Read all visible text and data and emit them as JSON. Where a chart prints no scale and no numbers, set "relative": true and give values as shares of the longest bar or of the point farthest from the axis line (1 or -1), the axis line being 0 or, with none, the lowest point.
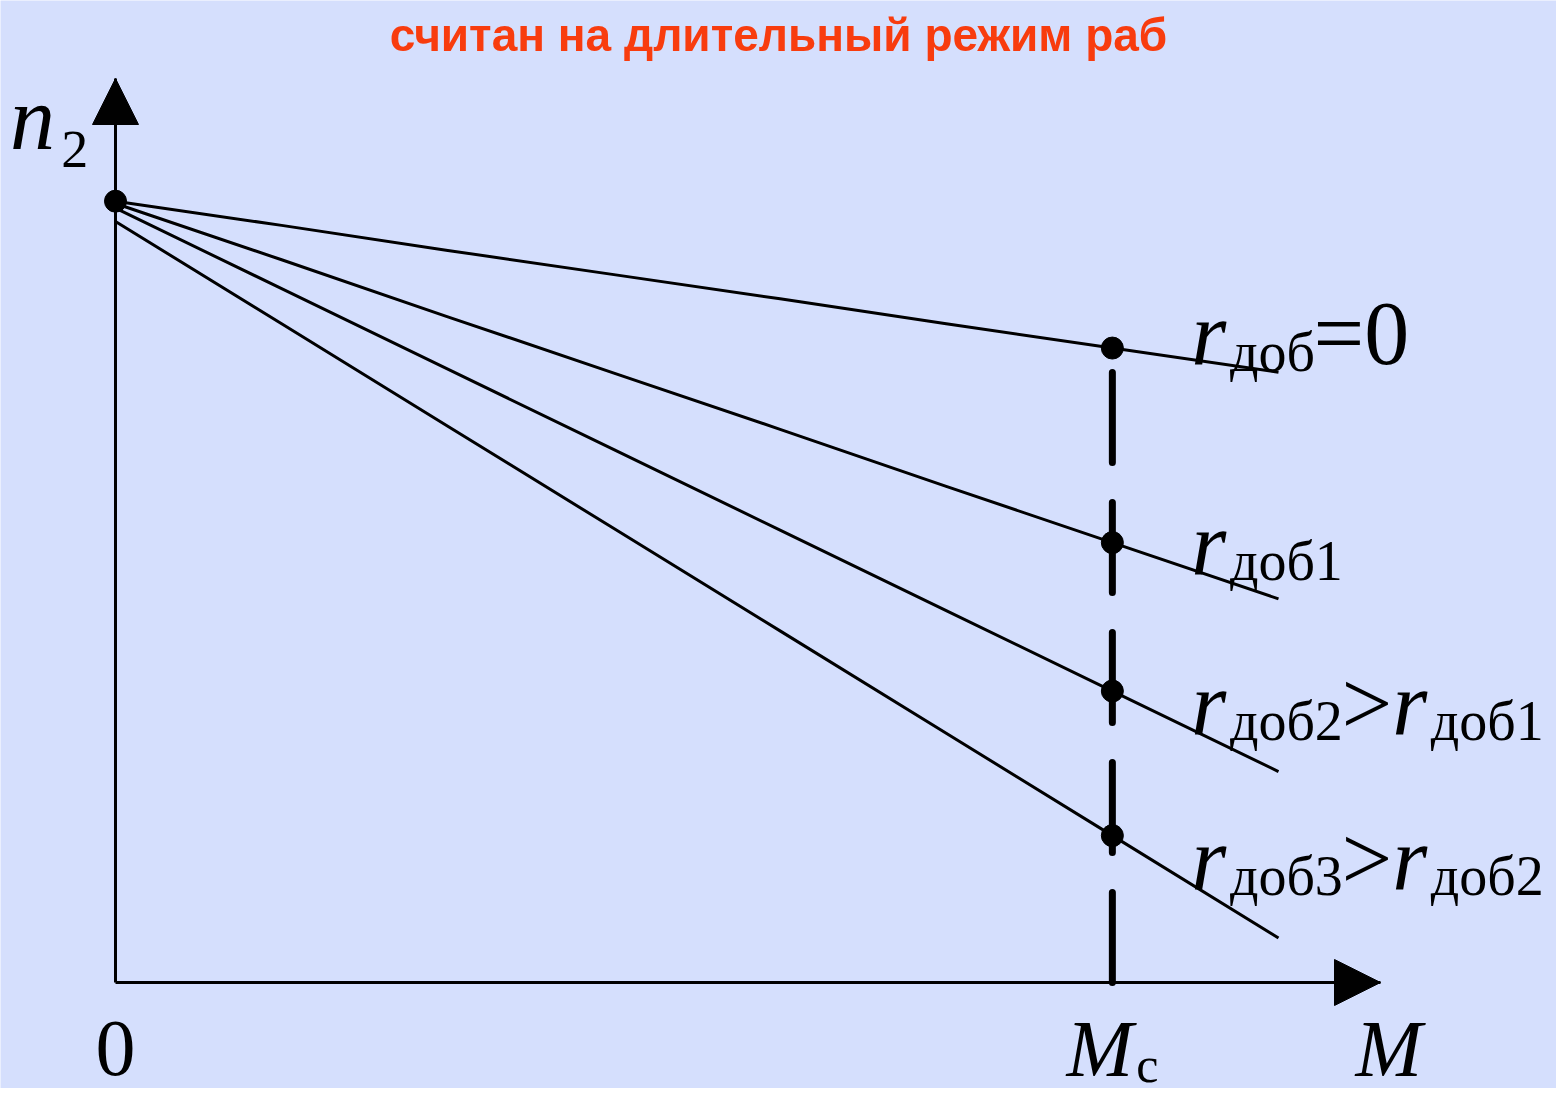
{
  "chart_data": {
    "type": "line",
    "title": "считан на длительный режим раб",
    "xlabel": "M",
    "ylabel": "n₂",
    "relative": true,
    "categories": [
      "0",
      null,
      null,
      null,
      null,
      null,
      "M$_{с}$",
      null
    ],
    "series": [
      {
        "name": "r$_{доб}$=0",
        "color": "#000000",
        "values": [
          1,
          0.969,
          0.937,
          0.906,
          0.875,
          0.843,
          0.812,
          0.781
        ]
      },
      {
        "name": "r$_{доб1}$",
        "color": "#000000",
        "values": [
          0.997,
          0.925,
          0.852,
          0.78,
          0.708,
          0.635,
          0.563,
          0.491
        ]
      },
      {
        "name": "r$_{доб2}$>r$_{доб1}$",
        "color": "#000000",
        "values": [
          0.991,
          0.888,
          0.785,
          0.682,
          0.579,
          0.476,
          0.373,
          0.27
        ]
      },
      {
        "name": "r$_{доб3}$>r$_{доб2}$",
        "color": "#000000",
        "values": [
          0.974,
          0.843,
          0.712,
          0.581,
          0.45,
          0.319,
          0.188,
          0.057
        ]
      },
      {
        "type": "scatter",
        "x": [
          "0",
          "M$_{с}$",
          "M$_{с}$",
          "M$_{с}$",
          "M$_{с}$"
        ],
        "values": [
          1,
          0.812,
          0.563,
          0.373,
          0.188
        ],
        "color": "#000000",
        "marker": "circle"
      }
    ],
    "ref_lines": [
      {
        "axis": "x",
        "value": "M$_{с}$",
        "color": "#000000",
        "line_style": "dashed"
      }
    ]
  }
}
